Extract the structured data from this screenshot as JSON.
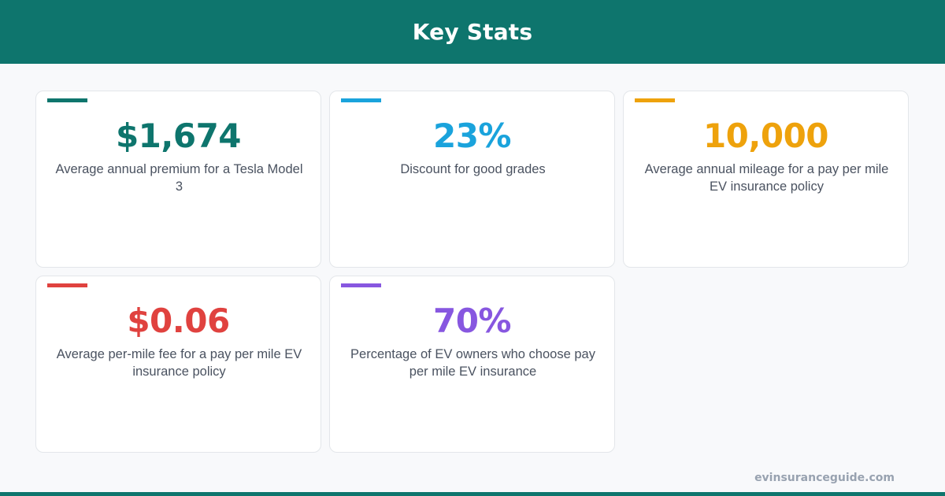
{
  "header": {
    "title": "Key Stats"
  },
  "cards": [
    {
      "value": "$1,674",
      "description": "Average annual premium for a Tesla Model 3",
      "color": "#0e756d"
    },
    {
      "value": "23%",
      "description": "Discount for good grades",
      "color": "#1aa3dc"
    },
    {
      "value": "10,000",
      "description": "Average annual mileage for a pay per mile EV insurance policy",
      "color": "#eea20c"
    },
    {
      "value": "$0.06",
      "description": "Average per-mile fee for a pay per mile EV insurance policy",
      "color": "#e0423f"
    },
    {
      "value": "70%",
      "description": "Percentage of EV owners who choose pay per mile EV insurance",
      "color": "#8757e0"
    }
  ],
  "footer": {
    "domain": "evinsuranceguide.com"
  }
}
